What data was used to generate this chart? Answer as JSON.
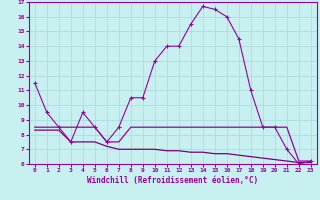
{
  "xlabel": "Windchill (Refroidissement éolien,°C)",
  "background_color": "#c8f0f0",
  "plot_bg_color": "#c8f0f0",
  "line_color": "#990099",
  "grid_color": "#aadddd",
  "xlim": [
    -0.5,
    23.5
  ],
  "ylim": [
    6,
    17
  ],
  "xticks": [
    0,
    1,
    2,
    3,
    4,
    5,
    6,
    7,
    8,
    9,
    10,
    11,
    12,
    13,
    14,
    15,
    16,
    17,
    18,
    19,
    20,
    21,
    22,
    23
  ],
  "yticks": [
    6,
    7,
    8,
    9,
    10,
    11,
    12,
    13,
    14,
    15,
    16,
    17
  ],
  "line1_x": [
    0,
    1,
    2,
    3,
    4,
    5,
    6,
    7,
    8,
    9,
    10,
    11,
    12,
    13,
    14,
    15,
    16,
    17,
    18,
    19,
    20,
    21,
    22,
    23
  ],
  "line1_y": [
    11.5,
    9.5,
    8.5,
    7.5,
    9.5,
    8.5,
    7.5,
    8.5,
    10.5,
    10.5,
    13.0,
    14.0,
    14.0,
    15.5,
    16.7,
    16.5,
    16.0,
    14.5,
    11.0,
    8.5,
    8.5,
    7.0,
    6.0,
    6.2
  ],
  "line2_x": [
    0,
    1,
    2,
    3,
    4,
    5,
    6,
    7,
    8,
    9,
    10,
    11,
    12,
    13,
    14,
    15,
    16,
    17,
    18,
    19,
    20,
    21,
    22,
    23
  ],
  "line2_y": [
    8.5,
    8.5,
    8.5,
    8.5,
    8.5,
    8.5,
    7.5,
    7.5,
    8.5,
    8.5,
    8.5,
    8.5,
    8.5,
    8.5,
    8.5,
    8.5,
    8.5,
    8.5,
    8.5,
    8.5,
    8.5,
    8.5,
    6.2,
    6.2
  ],
  "line3_x": [
    0,
    1,
    2,
    3,
    4,
    5,
    6,
    7,
    8,
    9,
    10,
    11,
    12,
    13,
    14,
    15,
    16,
    17,
    18,
    19,
    20,
    21,
    22,
    23
  ],
  "line3_y": [
    8.3,
    8.3,
    8.3,
    7.5,
    7.5,
    7.5,
    7.2,
    7.0,
    7.0,
    7.0,
    7.0,
    6.9,
    6.9,
    6.8,
    6.8,
    6.7,
    6.7,
    6.6,
    6.5,
    6.4,
    6.3,
    6.2,
    6.1,
    6.1
  ]
}
